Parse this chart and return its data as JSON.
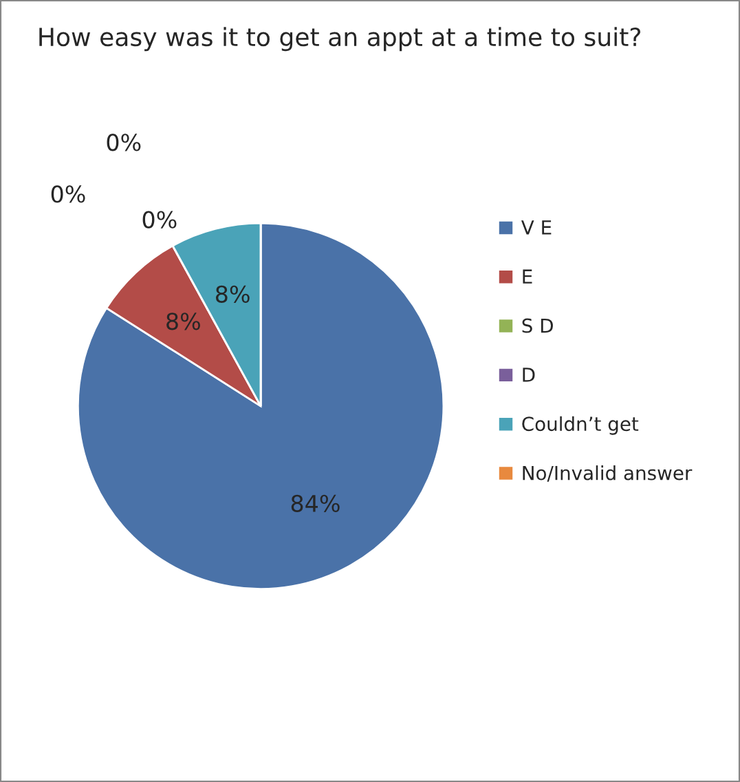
{
  "chart_data": {
    "type": "pie",
    "title": "How easy was it to get an appt at a time to suit?",
    "categories": [
      "V E",
      "E",
      "S D",
      "D",
      "Couldn’t get",
      "No/Invalid answer"
    ],
    "values": [
      84,
      8,
      0,
      0,
      8,
      0
    ],
    "colors": [
      "#4a72a8",
      "#b34c48",
      "#93b356",
      "#7a5f9b",
      "#4aa3b8",
      "#e8893e"
    ],
    "value_labels": [
      "84%",
      "8%",
      "0%",
      "0%",
      "8%",
      "0%"
    ],
    "legend": "right"
  }
}
